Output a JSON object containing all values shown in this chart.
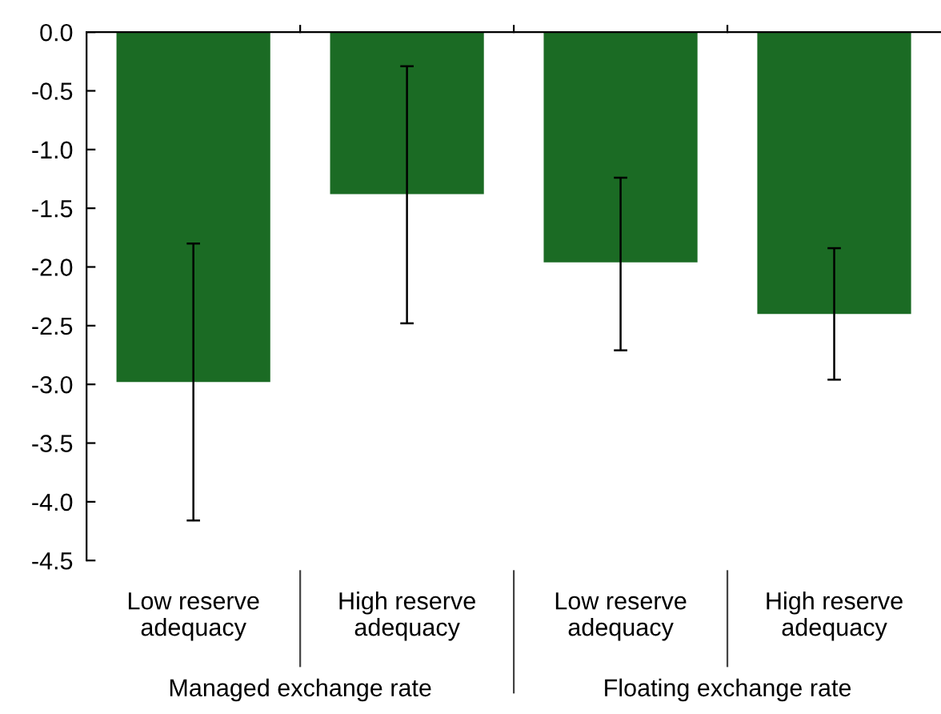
{
  "chart_data": {
    "type": "bar",
    "categories": [
      "Low reserve\nadequacy",
      "High reserve\nadequacy",
      "Low reserve\nadequacy",
      "High reserve\nadequacy"
    ],
    "values": [
      -2.98,
      -1.38,
      -1.96,
      -2.4
    ],
    "errors": [
      [
        -4.16,
        -1.8
      ],
      [
        -2.48,
        -0.29
      ],
      [
        -2.71,
        -1.24
      ],
      [
        -2.96,
        -1.84
      ]
    ],
    "color": "#1b6b24",
    "ylim": [
      -4.5,
      0
    ],
    "yticks": [
      {
        "value": 0,
        "label": "0.0"
      },
      {
        "value": -0.5,
        "label": "-0.5"
      },
      {
        "value": -1,
        "label": "-1.0"
      },
      {
        "value": -1.5,
        "label": "-1.5"
      },
      {
        "value": -2,
        "label": "-2.0"
      },
      {
        "value": -2.5,
        "label": "-2.5"
      },
      {
        "value": -3,
        "label": "-3.0"
      },
      {
        "value": -3.5,
        "label": "-3.5"
      },
      {
        "value": -4,
        "label": "-4.0"
      },
      {
        "value": -4.5,
        "label": "-4.5"
      }
    ],
    "annotations": [
      "Managed exchange rate",
      "Floating exchange rate"
    ],
    "grid": false
  }
}
